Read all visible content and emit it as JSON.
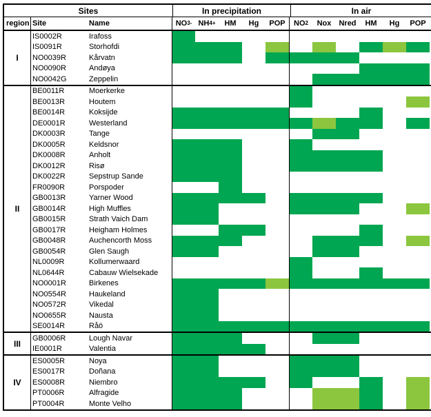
{
  "header": {
    "sites_group": "Sites",
    "precip_group": "In precipitation",
    "air_group": "In air",
    "region_col": "region",
    "site_col": "Site",
    "name_col": "Name",
    "precip_cols": [
      {
        "key": "no3",
        "text": "NO",
        "sub": "3",
        "sup": "-"
      },
      {
        "key": "nh4",
        "text": "NH",
        "sub": "4",
        "sup": "+"
      },
      {
        "key": "hm",
        "text": "HM"
      },
      {
        "key": "hg",
        "text": "Hg"
      },
      {
        "key": "pop",
        "text": "POP"
      }
    ],
    "air_cols": [
      {
        "key": "no2",
        "text": "NO",
        "sub": "2"
      },
      {
        "key": "nox",
        "text": "Nox"
      },
      {
        "key": "nred",
        "text": "Nred"
      },
      {
        "key": "hm",
        "text": "HM"
      },
      {
        "key": "hg",
        "text": "Hg"
      },
      {
        "key": "pop",
        "text": "POP"
      }
    ]
  },
  "colors": {
    "G": "#00a651",
    "L": "#8cc63f",
    "W": "#ffffff"
  },
  "chart_data": {
    "type": "heatmap",
    "title": "",
    "cell_codes": {
      "G": "dark green",
      "L": "light green",
      "W": "white"
    },
    "precip_columns": [
      "NO3-",
      "NH4+",
      "HM",
      "Hg",
      "POP"
    ],
    "air_columns": [
      "NO2",
      "Nox",
      "Nred",
      "HM",
      "Hg",
      "POP"
    ],
    "regions": [
      {
        "label": "I",
        "rows": [
          {
            "site": "IS0002R",
            "name": "Irafoss",
            "precip": [
              "G",
              "W",
              "W",
              "W",
              "W"
            ],
            "air": [
              "W",
              "W",
              "W",
              "W",
              "W",
              "W"
            ]
          },
          {
            "site": "IS0091R",
            "name": "Storhofdi",
            "precip": [
              "G",
              "G",
              "G",
              "W",
              "L"
            ],
            "air": [
              "W",
              "L",
              "W",
              "G",
              "L",
              "G"
            ]
          },
          {
            "site": "NO0039R",
            "name": "Kårvatn",
            "precip": [
              "G",
              "G",
              "G",
              "W",
              "G"
            ],
            "air": [
              "G",
              "G",
              "G",
              "W",
              "W",
              "W"
            ]
          },
          {
            "site": "NO0090R",
            "name": "Andøya",
            "precip": [
              "W",
              "W",
              "W",
              "W",
              "W"
            ],
            "air": [
              "W",
              "W",
              "W",
              "G",
              "G",
              "G"
            ]
          },
          {
            "site": "NO0042G",
            "name": "Zeppelin",
            "precip": [
              "W",
              "W",
              "W",
              "W",
              "W"
            ],
            "air": [
              "W",
              "G",
              "G",
              "G",
              "G",
              "G"
            ]
          }
        ]
      },
      {
        "label": "II",
        "rows": [
          {
            "site": "BE0011R",
            "name": "Moerkerke",
            "precip": [
              "W",
              "W",
              "W",
              "W",
              "W"
            ],
            "air": [
              "G",
              "W",
              "W",
              "W",
              "W",
              "W"
            ]
          },
          {
            "site": "BE0013R",
            "name": "Houtem",
            "precip": [
              "W",
              "W",
              "W",
              "W",
              "W"
            ],
            "air": [
              "G",
              "W",
              "W",
              "W",
              "W",
              "L"
            ]
          },
          {
            "site": "BE0014R",
            "name": "Koksijde",
            "precip": [
              "G",
              "G",
              "G",
              "G",
              "G"
            ],
            "air": [
              "W",
              "W",
              "W",
              "G",
              "W",
              "W"
            ]
          },
          {
            "site": "DE0001R",
            "name": "Westerland",
            "precip": [
              "G",
              "G",
              "G",
              "G",
              "G"
            ],
            "air": [
              "G",
              "L",
              "G",
              "G",
              "W",
              "G"
            ]
          },
          {
            "site": "DK0003R",
            "name": "Tange",
            "precip": [
              "W",
              "W",
              "W",
              "W",
              "W"
            ],
            "air": [
              "W",
              "G",
              "G",
              "W",
              "W",
              "W"
            ]
          },
          {
            "site": "DK0005R",
            "name": "Keldsnor",
            "precip": [
              "G",
              "G",
              "G",
              "W",
              "W"
            ],
            "air": [
              "G",
              "W",
              "W",
              "W",
              "W",
              "W"
            ]
          },
          {
            "site": "DK0008R",
            "name": "Anholt",
            "precip": [
              "G",
              "G",
              "G",
              "W",
              "W"
            ],
            "air": [
              "G",
              "G",
              "G",
              "G",
              "W",
              "W"
            ]
          },
          {
            "site": "DK0012R",
            "name": "Risø",
            "precip": [
              "G",
              "G",
              "G",
              "W",
              "W"
            ],
            "air": [
              "G",
              "G",
              "G",
              "G",
              "W",
              "W"
            ]
          },
          {
            "site": "DK0022R",
            "name": "Sepstrup Sande",
            "precip": [
              "G",
              "G",
              "G",
              "W",
              "W"
            ],
            "air": [
              "W",
              "W",
              "W",
              "W",
              "W",
              "W"
            ]
          },
          {
            "site": "FR0090R",
            "name": "Porspoder",
            "precip": [
              "W",
              "W",
              "G",
              "W",
              "W"
            ],
            "air": [
              "W",
              "W",
              "W",
              "W",
              "W",
              "W"
            ]
          },
          {
            "site": "GB0013R",
            "name": "Yarner Wood",
            "precip": [
              "G",
              "G",
              "G",
              "G",
              "W"
            ],
            "air": [
              "G",
              "G",
              "G",
              "G",
              "W",
              "W"
            ]
          },
          {
            "site": "GB0014R",
            "name": "High Muffles",
            "precip": [
              "G",
              "G",
              "W",
              "W",
              "W"
            ],
            "air": [
              "G",
              "G",
              "G",
              "W",
              "W",
              "L"
            ]
          },
          {
            "site": "GB0015R",
            "name": "Strath Vaich Dam",
            "precip": [
              "G",
              "G",
              "W",
              "W",
              "W"
            ],
            "air": [
              "W",
              "W",
              "W",
              "W",
              "W",
              "W"
            ]
          },
          {
            "site": "GB0017R",
            "name": "Heigham Holmes",
            "precip": [
              "W",
              "W",
              "G",
              "G",
              "W"
            ],
            "air": [
              "W",
              "W",
              "W",
              "G",
              "W",
              "W"
            ]
          },
          {
            "site": "GB0048R",
            "name": "Auchencorth Moss",
            "precip": [
              "G",
              "G",
              "G",
              "W",
              "W"
            ],
            "air": [
              "W",
              "G",
              "G",
              "G",
              "W",
              "L"
            ]
          },
          {
            "site": "GB0054R",
            "name": "Glen Saugh",
            "precip": [
              "G",
              "G",
              "W",
              "W",
              "W"
            ],
            "air": [
              "W",
              "G",
              "G",
              "W",
              "W",
              "W"
            ]
          },
          {
            "site": "NL0009R",
            "name": "Kollumerwaard",
            "precip": [
              "W",
              "W",
              "W",
              "W",
              "W"
            ],
            "air": [
              "G",
              "W",
              "W",
              "W",
              "W",
              "W"
            ]
          },
          {
            "site": "NL0644R",
            "name": "Cabauw Wielsekade",
            "precip": [
              "W",
              "W",
              "W",
              "W",
              "W"
            ],
            "air": [
              "G",
              "W",
              "W",
              "G",
              "W",
              "W"
            ]
          },
          {
            "site": "NO0001R",
            "name": "Birkenes",
            "precip": [
              "G",
              "G",
              "G",
              "G",
              "L"
            ],
            "air": [
              "G",
              "G",
              "G",
              "G",
              "G",
              "G"
            ]
          },
          {
            "site": "NO0554R",
            "name": "Haukeland",
            "precip": [
              "G",
              "G",
              "W",
              "W",
              "W"
            ],
            "air": [
              "W",
              "W",
              "W",
              "W",
              "W",
              "W"
            ]
          },
          {
            "site": "NO0572R",
            "name": "Vikedal",
            "precip": [
              "G",
              "G",
              "W",
              "W",
              "W"
            ],
            "air": [
              "W",
              "W",
              "W",
              "W",
              "W",
              "W"
            ]
          },
          {
            "site": "NO0655R",
            "name": "Nausta",
            "precip": [
              "G",
              "G",
              "W",
              "W",
              "W"
            ],
            "air": [
              "W",
              "W",
              "W",
              "W",
              "W",
              "W"
            ]
          },
          {
            "site": "SE0014R",
            "name": "Råö",
            "precip": [
              "G",
              "G",
              "G",
              "G",
              "G"
            ],
            "air": [
              "G",
              "G",
              "G",
              "G",
              "G",
              "G"
            ]
          }
        ]
      },
      {
        "label": "III",
        "rows": [
          {
            "site": "GB0006R",
            "name": "Lough Navar",
            "precip": [
              "G",
              "G",
              "G",
              "W",
              "W"
            ],
            "air": [
              "W",
              "G",
              "G",
              "W",
              "W",
              "W"
            ]
          },
          {
            "site": "IE0001R",
            "name": "Valentia",
            "precip": [
              "G",
              "G",
              "G",
              "G",
              "W"
            ],
            "air": [
              "W",
              "W",
              "W",
              "W",
              "W",
              "W"
            ]
          }
        ]
      },
      {
        "label": "IV",
        "rows": [
          {
            "site": "ES0005R",
            "name": "Noya",
            "precip": [
              "G",
              "G",
              "W",
              "W",
              "W"
            ],
            "air": [
              "G",
              "G",
              "G",
              "W",
              "W",
              "W"
            ]
          },
          {
            "site": "ES0017R",
            "name": "Doñana",
            "precip": [
              "G",
              "G",
              "W",
              "W",
              "W"
            ],
            "air": [
              "G",
              "G",
              "G",
              "W",
              "W",
              "W"
            ]
          },
          {
            "site": "ES0008R",
            "name": "Niembro",
            "precip": [
              "G",
              "G",
              "G",
              "G",
              "W"
            ],
            "air": [
              "G",
              "W",
              "W",
              "G",
              "W",
              "L"
            ]
          },
          {
            "site": "PT0006R",
            "name": "Alfragide",
            "precip": [
              "G",
              "G",
              "G",
              "W",
              "W"
            ],
            "air": [
              "W",
              "L",
              "L",
              "G",
              "W",
              "L"
            ]
          },
          {
            "site": "PT0004R",
            "name": "Monte Velho",
            "precip": [
              "G",
              "G",
              "G",
              "W",
              "W"
            ],
            "air": [
              "W",
              "L",
              "L",
              "G",
              "W",
              "L"
            ]
          }
        ]
      }
    ]
  }
}
